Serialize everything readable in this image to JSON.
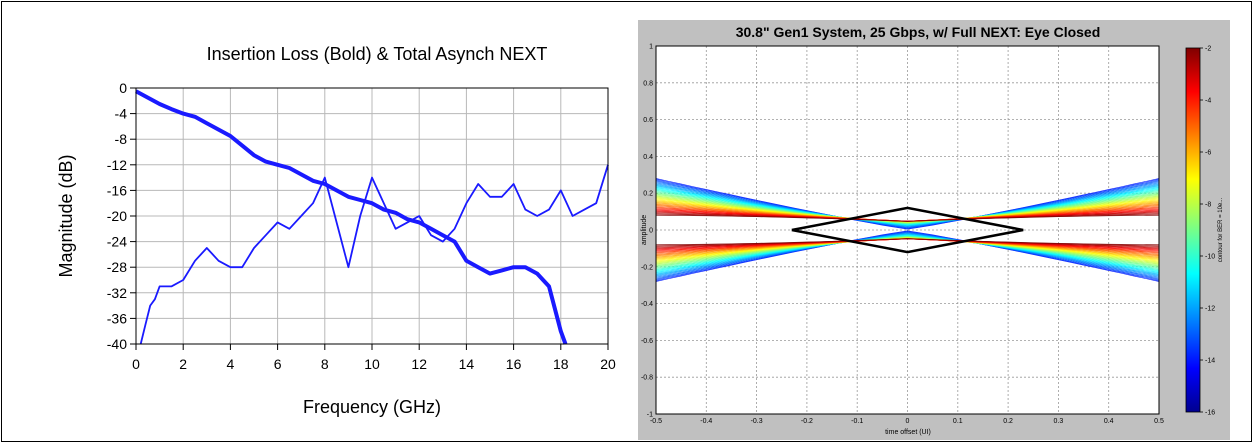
{
  "colors": {
    "curve": "#1a1aff",
    "grid": "#b8b8b8",
    "axis": "#000000",
    "panel_bg": "#c0c0c0"
  },
  "chart_data": [
    {
      "type": "line",
      "title": "Insertion Loss (Bold) & Total Asynch NEXT",
      "xlabel": "Frequency (GHz)",
      "ylabel": "Magnitude (dB)",
      "xlim": [
        0,
        20
      ],
      "ylim": [
        -40,
        0
      ],
      "xticks": [
        "0",
        "2",
        "4",
        "6",
        "8",
        "10",
        "12",
        "14",
        "16",
        "18",
        "20"
      ],
      "yticks": [
        "0",
        "-4",
        "-8",
        "-12",
        "-16",
        "-20",
        "-24",
        "-28",
        "-32",
        "-36",
        "-40"
      ],
      "grid": true,
      "series": [
        {
          "style": "bold",
          "x": [
            0,
            0.5,
            1,
            1.5,
            2,
            2.5,
            3,
            3.5,
            4,
            4.5,
            5,
            5.5,
            6,
            6.5,
            7,
            7.5,
            8,
            8.5,
            9,
            9.5,
            10,
            10.5,
            11,
            11.5,
            12,
            12.5,
            13,
            13.5,
            14,
            14.5,
            15,
            15.5,
            16,
            16.5,
            17,
            17.5,
            18,
            18.2
          ],
          "y": [
            -0.5,
            -1.5,
            -2.5,
            -3.3,
            -4,
            -4.5,
            -5.5,
            -6.5,
            -7.5,
            -9,
            -10.5,
            -11.5,
            -12,
            -12.5,
            -13.5,
            -14.5,
            -15,
            -16,
            -17,
            -17.5,
            -18,
            -19,
            -19.5,
            -20.5,
            -21,
            -22,
            -23,
            -24,
            -27,
            -28,
            -29,
            -28.5,
            -28,
            -28,
            -29,
            -31,
            -38,
            -40
          ]
        },
        {
          "style": "thin",
          "x": [
            0.2,
            0.4,
            0.6,
            0.8,
            1,
            1.5,
            2,
            2.5,
            3,
            3.5,
            4,
            4.5,
            5,
            5.5,
            6,
            6.5,
            7,
            7.5,
            8,
            8.5,
            9,
            9.5,
            10,
            10.5,
            11,
            11.5,
            12,
            12.5,
            13,
            13.5,
            14,
            14.5,
            15,
            15.5,
            16,
            16.5,
            17,
            17.5,
            18,
            18.5,
            19,
            19.5,
            20
          ],
          "y": [
            -40,
            -37,
            -34,
            -33,
            -31,
            -31,
            -30,
            -27,
            -25,
            -27,
            -28,
            -28,
            -25,
            -23,
            -21,
            -22,
            -20,
            -18,
            -14,
            -21,
            -28,
            -20,
            -14,
            -18,
            -22,
            -21,
            -20,
            -23,
            -24,
            -22,
            -18,
            -15,
            -17,
            -17,
            -15,
            -19,
            -20,
            -19,
            -16,
            -20,
            -19,
            -18,
            -12
          ]
        }
      ]
    },
    {
      "type": "contour",
      "title": "30.8\" Gen1 System, 25 Gbps, w/ Full NEXT: Eye Closed",
      "xlabel": "time offset (UI)",
      "ylabel": "amplitude",
      "xlim": [
        -0.5,
        0.5
      ],
      "ylim": [
        -1,
        1
      ],
      "xticks": [
        "-0.5",
        "-0.4",
        "-0.3",
        "-0.2",
        "-0.1",
        "0",
        "0.1",
        "0.2",
        "0.3",
        "0.4",
        "0.5"
      ],
      "yticks": [
        "1",
        "0.8",
        "0.6",
        "0.4",
        "0.2",
        "0",
        "-0.2",
        "-0.4",
        "-0.6",
        "-0.8",
        "-1"
      ],
      "grid": true,
      "eye_mask": {
        "x": [
          -0.23,
          0,
          0.23,
          0,
          -0.23
        ],
        "y": [
          0,
          0.12,
          0,
          -0.12,
          0
        ]
      },
      "colorbar": {
        "label": "contour for BER = 10e...",
        "ticks": [
          "-2",
          "-4",
          "-6",
          "-8",
          "-10",
          "-12",
          "-14",
          "-16"
        ],
        "range": [
          -16,
          -2
        ]
      }
    }
  ]
}
